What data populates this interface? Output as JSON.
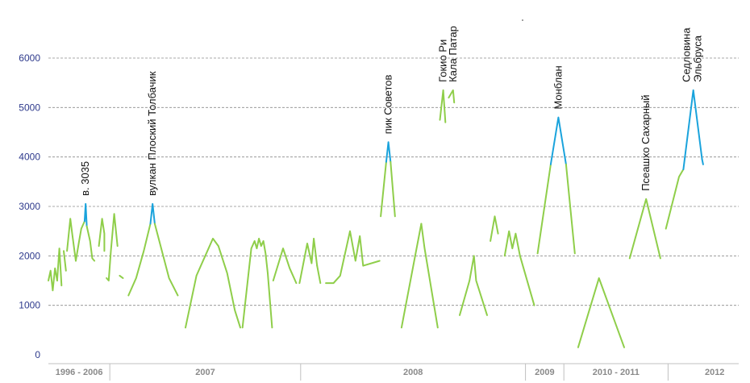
{
  "chart_data": {
    "type": "line",
    "title": "",
    "xlabel": "",
    "ylabel": "",
    "ylim": [
      0,
      6000
    ],
    "yticks": [
      "0",
      "1000",
      "2000",
      "3000",
      "4000",
      "5000",
      "6000"
    ],
    "grid": true,
    "colors": {
      "normal": "#8fce4a",
      "peak": "#1aa3dc",
      "grid": "#8c8c8c",
      "axis": "#c0c0c0"
    },
    "x_categories": [
      {
        "label": "1996 - 2006",
        "from": 0,
        "to": 5.6
      },
      {
        "label": "2007",
        "from": 5.6,
        "to": 23
      },
      {
        "label": "2008",
        "from": 23,
        "to": 43.5
      },
      {
        "label": "2009",
        "from": 43.5,
        "to": 47
      },
      {
        "label": "2010 - 2011",
        "from": 47,
        "to": 56.5
      },
      {
        "label": "2012",
        "from": 56.5,
        "to": 65
      }
    ],
    "series": [
      {
        "values": [
          [
            0,
            1500
          ],
          [
            0.2,
            1700
          ],
          [
            0.4,
            1300
          ],
          [
            0.6,
            1750
          ],
          [
            0.8,
            1500
          ]
        ]
      },
      {
        "values": [
          [
            0.8,
            1500
          ],
          [
            1.0,
            2150
          ],
          [
            1.2,
            1400
          ]
        ]
      },
      {
        "values": [
          [
            1.4,
            2100
          ],
          [
            1.6,
            1700
          ]
        ]
      },
      {
        "values": [
          [
            1.7,
            2100
          ],
          [
            2.0,
            2750
          ],
          [
            2.2,
            2400
          ],
          [
            2.5,
            1900
          ]
        ]
      },
      {
        "values": [
          [
            2.5,
            1900
          ],
          [
            2.8,
            2300
          ],
          [
            3.0,
            2550
          ],
          [
            3.3,
            2700
          ]
        ]
      },
      {
        "values": [
          [
            3.3,
            2700
          ],
          [
            3.4,
            3050
          ],
          [
            3.5,
            2600
          ]
        ],
        "peak": true
      },
      {
        "values": [
          [
            3.5,
            2600
          ],
          [
            3.8,
            2300
          ],
          [
            4.0,
            1950
          ],
          [
            4.2,
            1900
          ]
        ]
      },
      {
        "values": [
          [
            4.6,
            2200
          ],
          [
            4.9,
            2750
          ],
          [
            5.1,
            2450
          ],
          [
            5.1,
            2100
          ]
        ]
      },
      {
        "values": [
          [
            5.3,
            1550
          ],
          [
            5.5,
            1500
          ],
          [
            5.7,
            2100
          ],
          [
            6.0,
            2850
          ],
          [
            6.3,
            2200
          ]
        ]
      },
      {
        "values": [
          [
            6.5,
            1600
          ],
          [
            6.8,
            1550
          ]
        ]
      },
      {
        "values": [
          [
            7.3,
            1200
          ],
          [
            8.0,
            1550
          ],
          [
            8.7,
            2100
          ],
          [
            9.3,
            2650
          ]
        ]
      },
      {
        "values": [
          [
            9.3,
            2650
          ],
          [
            9.5,
            3050
          ],
          [
            9.7,
            2650
          ]
        ],
        "peak": true
      },
      {
        "values": [
          [
            9.7,
            2650
          ],
          [
            11.0,
            1550
          ],
          [
            11.8,
            1200
          ]
        ]
      },
      {
        "values": [
          [
            12.5,
            550
          ],
          [
            13.5,
            1600
          ],
          [
            14.3,
            2000
          ],
          [
            15.0,
            2350
          ],
          [
            15.5,
            2200
          ],
          [
            16.3,
            1650
          ],
          [
            17.0,
            900
          ],
          [
            17.5,
            550
          ]
        ]
      },
      {
        "values": [
          [
            17.7,
            550
          ],
          [
            18.5,
            2150
          ],
          [
            18.8,
            2300
          ],
          [
            19.0,
            2150
          ],
          [
            19.2,
            2350
          ],
          [
            19.4,
            2200
          ],
          [
            19.6,
            2300
          ],
          [
            19.8,
            2050
          ],
          [
            20.0,
            1650
          ],
          [
            20.4,
            550
          ]
        ]
      },
      {
        "values": [
          [
            20.5,
            1500
          ],
          [
            21.4,
            2150
          ],
          [
            22.0,
            1750
          ],
          [
            22.6,
            1450
          ]
        ]
      },
      {
        "values": [
          [
            22.9,
            1450
          ],
          [
            23.6,
            2250
          ],
          [
            24.0,
            1850
          ],
          [
            24.2,
            2350
          ],
          [
            24.5,
            1800
          ]
        ]
      },
      {
        "values": [
          [
            24.5,
            1800
          ],
          [
            24.8,
            1450
          ]
        ]
      },
      {
        "values": [
          [
            25.3,
            1450
          ],
          [
            26.0,
            1450
          ],
          [
            26.6,
            1600
          ],
          [
            27.5,
            2500
          ],
          [
            28.0,
            1900
          ],
          [
            28.4,
            2400
          ],
          [
            28.7,
            1800
          ],
          [
            30.2,
            1900
          ]
        ]
      },
      {
        "values": [
          [
            30.3,
            2800
          ],
          [
            30.8,
            3900
          ]
        ]
      },
      {
        "values": [
          [
            30.8,
            3900
          ],
          [
            31.0,
            4300
          ],
          [
            31.2,
            3900
          ]
        ],
        "peak": true
      },
      {
        "values": [
          [
            31.2,
            3900
          ],
          [
            31.6,
            2800
          ]
        ]
      },
      {
        "values": [
          [
            32.2,
            550
          ],
          [
            33.4,
            1950
          ],
          [
            34.0,
            2650
          ]
        ]
      },
      {
        "values": [
          [
            34.0,
            2650
          ],
          [
            34.3,
            2150
          ],
          [
            35.5,
            550
          ]
        ]
      },
      {
        "values": [
          [
            35.7,
            4750
          ],
          [
            36.0,
            5350
          ],
          [
            36.2,
            4700
          ]
        ]
      },
      {
        "values": [
          [
            36.5,
            5200
          ],
          [
            36.9,
            5350
          ],
          [
            37.0,
            5100
          ]
        ]
      },
      {
        "values": [
          [
            37.5,
            800
          ],
          [
            38.4,
            1500
          ],
          [
            38.8,
            2000
          ],
          [
            39.0,
            1500
          ],
          [
            40.0,
            800
          ]
        ]
      },
      {
        "values": [
          [
            40.3,
            2300
          ],
          [
            40.7,
            2800
          ],
          [
            41.0,
            2450
          ]
        ]
      },
      {
        "values": [
          [
            41.6,
            2000
          ],
          [
            42.0,
            2500
          ],
          [
            42.3,
            2150
          ],
          [
            42.6,
            2450
          ],
          [
            43.0,
            2000
          ]
        ]
      },
      {
        "values": [
          [
            43.0,
            2000
          ],
          [
            44.3,
            1000
          ]
        ]
      },
      {
        "values": [
          [
            44.6,
            2050
          ],
          [
            45.8,
            3850
          ]
        ]
      },
      {
        "values": [
          [
            45.8,
            3850
          ],
          [
            46.5,
            4800
          ],
          [
            47.2,
            3850
          ]
        ],
        "peak": true
      },
      {
        "values": [
          [
            47.2,
            3850
          ],
          [
            48.0,
            2050
          ]
        ]
      },
      {
        "values": [
          [
            48.3,
            150
          ],
          [
            50.2,
            1550
          ],
          [
            52.5,
            150
          ]
        ]
      },
      {
        "values": [
          [
            53.0,
            1950
          ],
          [
            54.5,
            3150
          ],
          [
            55.8,
            1950
          ]
        ]
      },
      {
        "values": [
          [
            56.3,
            2550
          ],
          [
            57.5,
            3600
          ],
          [
            57.9,
            3750
          ]
        ]
      },
      {
        "values": [
          [
            57.9,
            3750
          ],
          [
            58.8,
            5350
          ],
          [
            59.6,
            3950
          ]
        ],
        "peak": true
      },
      {
        "values": [
          [
            59.6,
            3950
          ],
          [
            59.7,
            3850
          ]
        ],
        "peak": true
      }
    ],
    "annotations": [
      {
        "text": "в. 3035",
        "x": 3.4,
        "y": 3050
      },
      {
        "text": "вулкан Плоский Толбачик",
        "x": 9.5,
        "y": 3050
      },
      {
        "text": "пик Советов",
        "x": 31.0,
        "y": 4300
      },
      {
        "text": "Гокио Ри",
        "x": 36.0,
        "y": 5350
      },
      {
        "text": "Кала Патар",
        "x": 36.9,
        "y": 5350
      },
      {
        "text": "Монблан",
        "x": 46.5,
        "y": 4800
      },
      {
        "text": "Псеашхо Сахарный",
        "x": 54.5,
        "y": 3150
      },
      {
        "text": "Седловина Эльбруса",
        "x": 58.8,
        "y": 5350
      }
    ]
  }
}
